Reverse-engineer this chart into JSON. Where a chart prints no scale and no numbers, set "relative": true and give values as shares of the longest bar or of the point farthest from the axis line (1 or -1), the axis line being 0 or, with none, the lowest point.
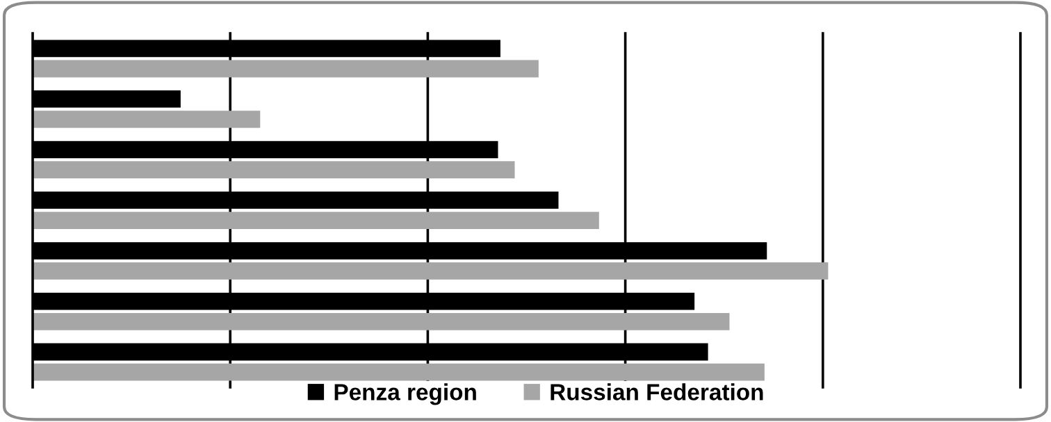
{
  "chart_data": {
    "type": "bar",
    "orientation": "horizontal",
    "relative": true,
    "grid": "x",
    "legend": "bottom",
    "categories": [
      null,
      null,
      null,
      null,
      null,
      null,
      null
    ],
    "series": [
      {
        "name": "Penza region",
        "color": "#000000",
        "values": [
          0.588,
          0.186,
          0.585,
          0.661,
          0.923,
          0.832,
          0.849
        ]
      },
      {
        "name": "Russian Federation",
        "color": "#a6a6a6",
        "values": [
          0.636,
          0.286,
          0.606,
          0.712,
          1,
          0.876,
          0.92
        ]
      }
    ]
  }
}
